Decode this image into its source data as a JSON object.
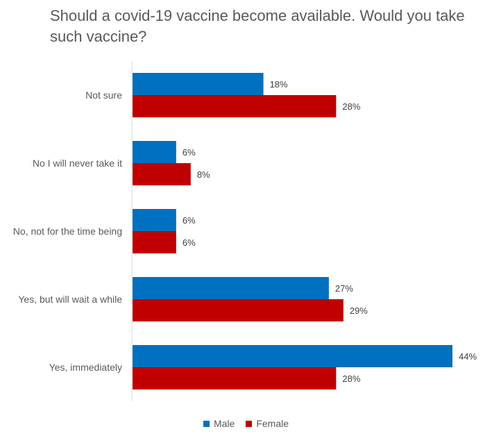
{
  "chart_data": {
    "type": "bar",
    "orientation": "horizontal",
    "title": "Should a covid-19 vaccine become available. Would you take such vaccine?",
    "categories": [
      "Not sure",
      "No I will never take it",
      "No, not for the time being",
      "Yes, but will wait a while",
      "Yes, immediately"
    ],
    "series": [
      {
        "name": "Male",
        "values": [
          18,
          6,
          6,
          27,
          44
        ],
        "color": "#0070c0"
      },
      {
        "name": "Female",
        "values": [
          28,
          8,
          6,
          29,
          28
        ],
        "color": "#c00000"
      }
    ],
    "value_labels": {
      "Male": [
        "18%",
        "6%",
        "6%",
        "27%",
        "44%"
      ],
      "Female": [
        "28%",
        "8%",
        "6%",
        "29%",
        "28%"
      ]
    },
    "xlim": [
      0,
      44
    ],
    "grid": false,
    "legend": "bottom"
  }
}
